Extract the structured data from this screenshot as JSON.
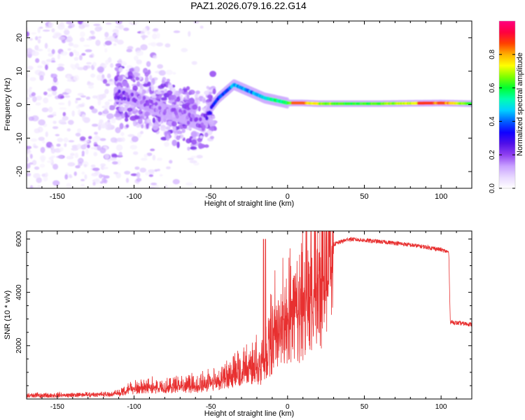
{
  "title": "PAZ1.2026.079.16.22.G14",
  "chart_data": [
    {
      "type": "heatmap",
      "name": "spectrogram",
      "xlabel": "Height of straight line (km)",
      "ylabel": "Frequency (Hz)",
      "xlim": [
        -170,
        120
      ],
      "ylim": [
        -25,
        25
      ],
      "xticks": [
        -150,
        -100,
        -50,
        0,
        50,
        100
      ],
      "yticks": [
        -20,
        -10,
        0,
        10,
        20
      ],
      "colorbar": {
        "label": "Normalized spectral amplitude",
        "range": [
          0,
          1
        ],
        "ticks": [
          "0.0",
          "0.2",
          "0.4",
          "0.6",
          "0.8"
        ],
        "tick_values": [
          0.0,
          0.2,
          0.4,
          0.6,
          0.8
        ],
        "colors": [
          "#ffffff",
          "#e8d8ff",
          "#c8a0ff",
          "#9040f0",
          "#5010e8",
          "#1000ff",
          "#0060ff",
          "#00d0ff",
          "#00ffb0",
          "#00ff30",
          "#80ff00",
          "#ffff00",
          "#ffb000",
          "#ff4000",
          "#ff0040",
          "#ff0080"
        ]
      },
      "ridge": {
        "x": [
          -110,
          -100,
          -90,
          -80,
          -70,
          -60,
          -55,
          -50,
          -45,
          -40,
          -35,
          -30,
          -25,
          -20,
          -15,
          -10,
          -5,
          0,
          10,
          20,
          40,
          60,
          80,
          100,
          120
        ],
        "freq": [
          3,
          2,
          0,
          -2,
          -3,
          -5,
          -6,
          -1,
          2,
          4,
          6,
          5,
          4,
          3,
          2,
          1.5,
          1,
          0.5,
          0.5,
          0.3,
          0.3,
          0.3,
          0.4,
          0.5,
          0.3
        ],
        "amplitude": [
          0.2,
          0.18,
          0.15,
          0.15,
          0.15,
          0.18,
          0.2,
          0.3,
          0.35,
          0.4,
          0.45,
          0.45,
          0.42,
          0.45,
          0.5,
          0.55,
          0.55,
          0.6,
          0.8,
          0.7,
          0.6,
          0.65,
          0.7,
          0.85,
          0.6
        ]
      }
    },
    {
      "type": "line",
      "name": "snr",
      "xlabel": "Height of straight line (km)",
      "ylabel": "SNR (10 * v/v)",
      "xlim": [
        -170,
        120
      ],
      "ylim": [
        0,
        6300
      ],
      "xticks": [
        -150,
        -100,
        -50,
        0,
        50,
        100
      ],
      "yticks": [
        2000,
        4000,
        6000
      ],
      "color": "#e83030",
      "envelope": {
        "x": [
          -170,
          -140,
          -115,
          -110,
          -100,
          -80,
          -60,
          -50,
          -40,
          -30,
          -20,
          -15,
          -10,
          -5,
          0,
          5,
          10,
          20,
          30,
          40,
          50,
          70,
          90,
          100,
          105,
          106,
          110,
          120
        ],
        "y": [
          100,
          120,
          150,
          200,
          400,
          450,
          500,
          600,
          800,
          1000,
          1300,
          1600,
          2800,
          3300,
          3600,
          3900,
          4300,
          5200,
          5800,
          6000,
          5950,
          5850,
          5700,
          5600,
          5500,
          2900,
          2850,
          2800
        ]
      }
    }
  ]
}
